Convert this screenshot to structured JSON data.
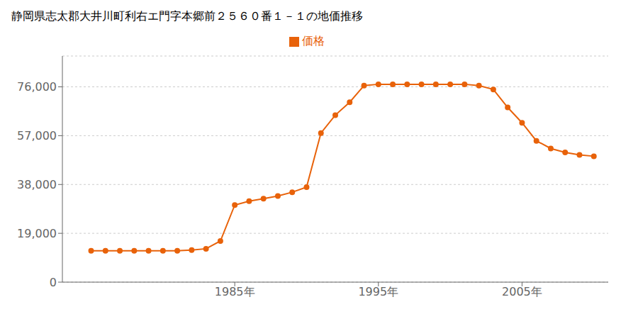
{
  "chart_data": {
    "type": "line",
    "title": "静岡県志太郡大井川町利右エ門字本郷前２５６０番１－１の地価推移",
    "x": [
      1975,
      1976,
      1977,
      1978,
      1979,
      1980,
      1981,
      1982,
      1983,
      1984,
      1985,
      1986,
      1987,
      1988,
      1989,
      1990,
      1991,
      1992,
      1993,
      1994,
      1995,
      1996,
      1997,
      1998,
      1999,
      2000,
      2001,
      2002,
      2003,
      2004,
      2005,
      2006,
      2007,
      2008,
      2009,
      2010
    ],
    "series": [
      {
        "name": "価格",
        "color": "#E8620A",
        "marker": "circle",
        "values": [
          12200,
          12200,
          12200,
          12200,
          12200,
          12200,
          12200,
          12500,
          13000,
          16000,
          30000,
          31500,
          32500,
          33500,
          35000,
          37000,
          58000,
          65000,
          70000,
          76500,
          77000,
          77000,
          77000,
          77000,
          77000,
          77000,
          77000,
          76500,
          75000,
          68000,
          62000,
          55000,
          52000,
          50500,
          49500,
          49000
        ]
      }
    ],
    "xlim": [
      1973,
      2011
    ],
    "xticks": [
      {
        "value": 1985,
        "label": "1985年"
      },
      {
        "value": 1995,
        "label": "1995年"
      },
      {
        "value": 2005,
        "label": "2005年"
      }
    ],
    "ylim": [
      0,
      88000
    ],
    "yticks": [
      0,
      {
        "value": 19000,
        "label": "19,000"
      },
      {
        "value": 38000,
        "label": "38,000"
      },
      {
        "value": 57000,
        "label": "57,000"
      },
      {
        "value": 76000,
        "label": "76,000"
      }
    ],
    "grid": "y",
    "legend": "top"
  }
}
